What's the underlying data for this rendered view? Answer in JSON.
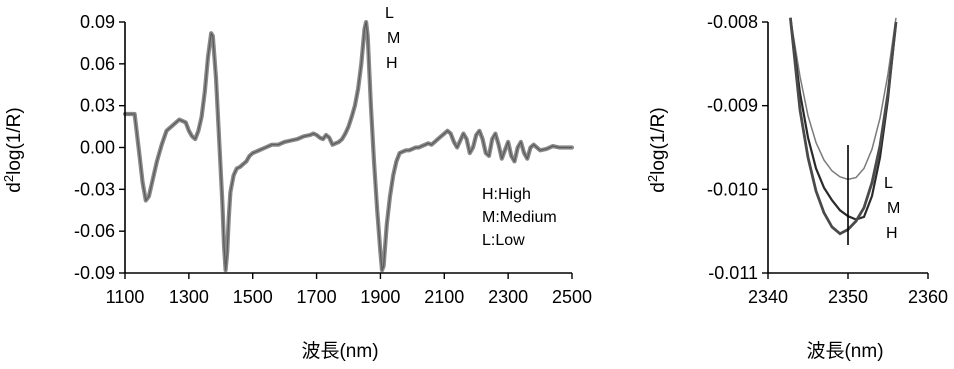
{
  "chart_data": [
    {
      "type": "line",
      "xlabel": "波長(nm)",
      "ylabel": "d²log(1/R)",
      "xlim": [
        1100,
        2500
      ],
      "ylim": [
        -0.09,
        0.09
      ],
      "xticks": [
        "1100",
        "1300",
        "1500",
        "1700",
        "1900",
        "2100",
        "2300",
        "2500"
      ],
      "yticks": [
        "0.09",
        "0.06",
        "0.03",
        "0.00",
        "-0.03",
        "-0.06",
        "-0.09"
      ],
      "series_labels": [
        "L",
        "M",
        "H"
      ],
      "legend": [
        "H:High",
        "M:Medium",
        "L:Low"
      ],
      "series": [
        {
          "x": [
            1100,
            1120,
            1130,
            1145,
            1155,
            1165,
            1175,
            1190,
            1200,
            1215,
            1230,
            1250,
            1270,
            1290,
            1300,
            1310,
            1320,
            1330,
            1340,
            1350,
            1360,
            1370,
            1375,
            1385,
            1395,
            1405,
            1410,
            1415,
            1420,
            1425,
            1430,
            1440,
            1450,
            1460,
            1470,
            1480,
            1490,
            1500,
            1520,
            1540,
            1560,
            1580,
            1600,
            1620,
            1640,
            1660,
            1680,
            1690,
            1700,
            1710,
            1720,
            1730,
            1740,
            1750,
            1760,
            1770,
            1780,
            1790,
            1800,
            1810,
            1820,
            1830,
            1840,
            1850,
            1855,
            1860,
            1865,
            1870,
            1880,
            1890,
            1900,
            1905,
            1910,
            1915,
            1920,
            1930,
            1940,
            1950,
            1960,
            1970,
            1980,
            1990,
            2000,
            2010,
            2020,
            2030,
            2040,
            2050,
            2060,
            2070,
            2080,
            2090,
            2100,
            2110,
            2120,
            2130,
            2140,
            2150,
            2160,
            2170,
            2180,
            2190,
            2200,
            2210,
            2220,
            2230,
            2240,
            2250,
            2260,
            2270,
            2280,
            2290,
            2300,
            2310,
            2320,
            2330,
            2340,
            2350,
            2360,
            2370,
            2380,
            2400,
            2420,
            2440,
            2460,
            2480,
            2500
          ],
          "y": [
            0.024,
            0.024,
            0.024,
            -0.005,
            -0.025,
            -0.038,
            -0.035,
            -0.02,
            -0.01,
            0.002,
            0.012,
            0.016,
            0.02,
            0.018,
            0.012,
            0.008,
            0.006,
            0.012,
            0.022,
            0.04,
            0.065,
            0.082,
            0.08,
            0.05,
            0.005,
            -0.04,
            -0.07,
            -0.088,
            -0.075,
            -0.05,
            -0.032,
            -0.02,
            -0.015,
            -0.014,
            -0.012,
            -0.01,
            -0.006,
            -0.004,
            -0.002,
            0.0,
            0.002,
            0.002,
            0.004,
            0.005,
            0.006,
            0.008,
            0.009,
            0.01,
            0.009,
            0.007,
            0.006,
            0.009,
            0.007,
            0.002,
            0.003,
            0.004,
            0.006,
            0.01,
            0.015,
            0.022,
            0.03,
            0.042,
            0.06,
            0.085,
            0.09,
            0.08,
            0.055,
            0.03,
            -0.01,
            -0.045,
            -0.075,
            -0.088,
            -0.085,
            -0.07,
            -0.055,
            -0.035,
            -0.02,
            -0.01,
            -0.004,
            -0.003,
            -0.002,
            -0.002,
            -0.001,
            0.0,
            0.0,
            0.001,
            0.002,
            0.003,
            0.002,
            0.004,
            0.006,
            0.008,
            0.01,
            0.012,
            0.01,
            0.004,
            0.0,
            0.005,
            0.01,
            0.006,
            -0.004,
            0.0,
            0.009,
            0.012,
            0.006,
            -0.004,
            -0.006,
            0.006,
            0.01,
            0.002,
            -0.008,
            -0.002,
            0.004,
            -0.006,
            -0.01,
            0.0,
            0.004,
            -0.004,
            -0.008,
            0.0,
            0.002,
            -0.002,
            -0.001,
            0.001,
            0.0,
            0.0,
            0.0
          ]
        }
      ]
    },
    {
      "type": "line",
      "xlabel": "波長(nm)",
      "ylabel": "d²log(1/R)",
      "xlim": [
        2340,
        2360
      ],
      "ylim": [
        -0.011,
        -0.008
      ],
      "xticks": [
        "2340",
        "2350",
        "2360"
      ],
      "yticks": [
        "-0.008",
        "-0.009",
        "-0.010",
        "-0.011"
      ],
      "vline_x": 2350,
      "series_labels": [
        "L",
        "M",
        "H"
      ],
      "series": [
        {
          "name": "L",
          "x": [
            2342.8,
            2344,
            2345,
            2346,
            2347,
            2348,
            2349,
            2350,
            2351,
            2352,
            2353,
            2354,
            2355,
            2356
          ],
          "y": [
            -0.00795,
            -0.00865,
            -0.00912,
            -0.00944,
            -0.00965,
            -0.00978,
            -0.00985,
            -0.00988,
            -0.00986,
            -0.00975,
            -0.00952,
            -0.00915,
            -0.00862,
            -0.00795
          ]
        },
        {
          "name": "M",
          "x": [
            2342.8,
            2344,
            2345,
            2346,
            2347,
            2348,
            2349,
            2350,
            2351,
            2352,
            2353,
            2354,
            2355,
            2356
          ],
          "y": [
            -0.00795,
            -0.00885,
            -0.00938,
            -0.00975,
            -0.00998,
            -0.01013,
            -0.01025,
            -0.01032,
            -0.01036,
            -0.01033,
            -0.01008,
            -0.00962,
            -0.00892,
            -0.008
          ]
        },
        {
          "name": "H",
          "x": [
            2342.8,
            2344,
            2345,
            2346,
            2347,
            2348,
            2349,
            2350,
            2351,
            2352,
            2353,
            2354,
            2355,
            2356
          ],
          "y": [
            -0.00795,
            -0.00905,
            -0.00962,
            -0.01002,
            -0.01028,
            -0.01045,
            -0.01053,
            -0.01048,
            -0.01038,
            -0.01022,
            -0.00992,
            -0.00948,
            -0.00885,
            -0.008
          ]
        }
      ]
    }
  ]
}
